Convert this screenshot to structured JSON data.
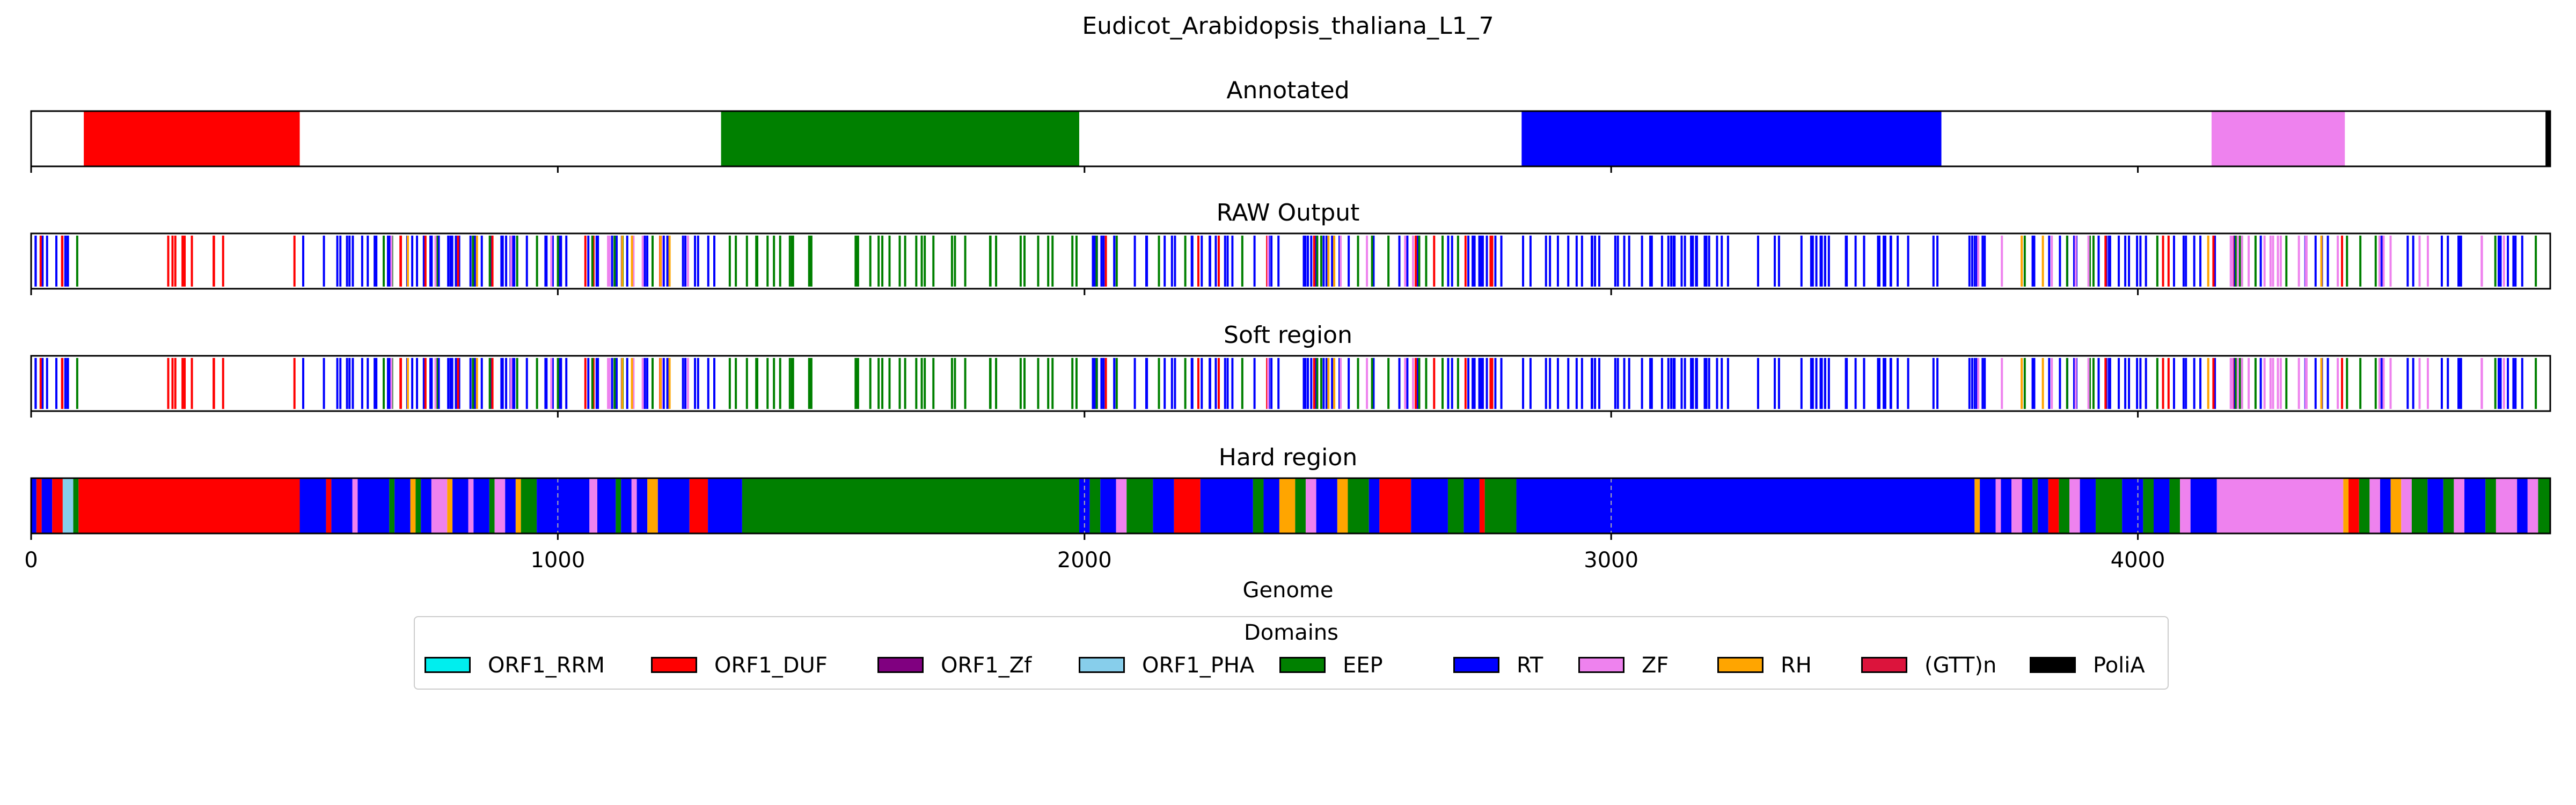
{
  "chart_data": {
    "type": "bar",
    "title": "Eudicot_Arabidopsis_thaliana_L1_7",
    "xlabel": "Genome",
    "xlim": [
      0,
      4783
    ],
    "xticks": [
      0,
      1000,
      2000,
      3000,
      4000
    ],
    "xtick_labels": [
      "0",
      "1000",
      "2000",
      "3000",
      "4000"
    ],
    "grid": "dashed vertical lines at ticks (hard region)",
    "colors": {
      "ORF1_RRM": "#00eeee",
      "ORF1_DUF": "#ff0000",
      "ORF1_Zf": "#800080",
      "ORF1_PHA": "#87ceeb",
      "EEP": "#008000",
      "RT": "#0000ff",
      "ZF": "#ee82ee",
      "RH": "#ffa500",
      "(GTT)n": "#dc143c",
      "PoliA": "#000000"
    },
    "panels": [
      {
        "title": "Annotated",
        "style": "block",
        "segments": [
          {
            "start": 100,
            "end": 510,
            "domain": "ORF1_DUF"
          },
          {
            "start": 1310,
            "end": 1990,
            "domain": "EEP"
          },
          {
            "start": 2830,
            "end": 3627,
            "domain": "RT"
          },
          {
            "start": 4140,
            "end": 4393,
            "domain": "ZF"
          },
          {
            "start": 4774,
            "end": 4783,
            "domain": "PoliA"
          }
        ]
      },
      {
        "title": "RAW Output",
        "style": "lines",
        "segments": [
          {
            "start": 5,
            "end": 75,
            "domain": "RT",
            "count": 8
          },
          {
            "start": 15,
            "end": 60,
            "domain": "ORF1_DUF",
            "count": 3
          },
          {
            "start": 85,
            "end": 90,
            "domain": "EEP",
            "count": 1
          },
          {
            "start": 160,
            "end": 400,
            "domain": "ORF1_DUF",
            "count": 9
          },
          {
            "start": 495,
            "end": 505,
            "domain": "ORF1_DUF",
            "count": 1
          },
          {
            "start": 515,
            "end": 1300,
            "domain": "RT",
            "count": 70
          },
          {
            "start": 550,
            "end": 1290,
            "domain": "ORF1_DUF",
            "count": 8
          },
          {
            "start": 620,
            "end": 1270,
            "domain": "EEP",
            "count": 12
          },
          {
            "start": 650,
            "end": 1250,
            "domain": "ZF",
            "count": 10
          },
          {
            "start": 700,
            "end": 1220,
            "domain": "RH",
            "count": 6
          },
          {
            "start": 1320,
            "end": 1990,
            "domain": "EEP",
            "count": 40
          },
          {
            "start": 2010,
            "end": 2800,
            "domain": "RT",
            "count": 55
          },
          {
            "start": 2020,
            "end": 2780,
            "domain": "EEP",
            "count": 14
          },
          {
            "start": 2040,
            "end": 2790,
            "domain": "ORF1_DUF",
            "count": 10
          },
          {
            "start": 2100,
            "end": 2700,
            "domain": "ZF",
            "count": 5
          },
          {
            "start": 2450,
            "end": 2500,
            "domain": "RH",
            "count": 2
          },
          {
            "start": 2820,
            "end": 3640,
            "domain": "RT",
            "count": 65
          },
          {
            "start": 3660,
            "end": 4760,
            "domain": "RT",
            "count": 55
          },
          {
            "start": 3660,
            "end": 4760,
            "domain": "EEP",
            "count": 16
          },
          {
            "start": 3690,
            "end": 3950,
            "domain": "ZF",
            "count": 6
          },
          {
            "start": 3690,
            "end": 4400,
            "domain": "RH",
            "count": 4
          },
          {
            "start": 3750,
            "end": 4500,
            "domain": "ORF1_DUF",
            "count": 6
          },
          {
            "start": 4150,
            "end": 4390,
            "domain": "ZF",
            "count": 14
          },
          {
            "start": 4430,
            "end": 4760,
            "domain": "ZF",
            "count": 8
          }
        ]
      },
      {
        "title": "Soft region",
        "style": "lines",
        "same_as": 1
      },
      {
        "title": "Hard region",
        "style": "block",
        "segments": [
          {
            "start": 0,
            "end": 10,
            "domain": "RT"
          },
          {
            "start": 10,
            "end": 20,
            "domain": "ORF1_DUF"
          },
          {
            "start": 20,
            "end": 40,
            "domain": "RT"
          },
          {
            "start": 40,
            "end": 60,
            "domain": "ORF1_DUF"
          },
          {
            "start": 60,
            "end": 80,
            "domain": "ORF1_PHA"
          },
          {
            "start": 80,
            "end": 90,
            "domain": "EEP"
          },
          {
            "start": 90,
            "end": 510,
            "domain": "ORF1_DUF"
          },
          {
            "start": 510,
            "end": 560,
            "domain": "RT"
          },
          {
            "start": 560,
            "end": 570,
            "domain": "ORF1_DUF"
          },
          {
            "start": 570,
            "end": 610,
            "domain": "RT"
          },
          {
            "start": 610,
            "end": 620,
            "domain": "ZF"
          },
          {
            "start": 620,
            "end": 680,
            "domain": "RT"
          },
          {
            "start": 680,
            "end": 690,
            "domain": "EEP"
          },
          {
            "start": 690,
            "end": 720,
            "domain": "RT"
          },
          {
            "start": 720,
            "end": 730,
            "domain": "RH"
          },
          {
            "start": 730,
            "end": 740,
            "domain": "EEP"
          },
          {
            "start": 740,
            "end": 760,
            "domain": "RT"
          },
          {
            "start": 760,
            "end": 790,
            "domain": "ZF"
          },
          {
            "start": 790,
            "end": 800,
            "domain": "RH"
          },
          {
            "start": 800,
            "end": 830,
            "domain": "RT"
          },
          {
            "start": 830,
            "end": 840,
            "domain": "ZF"
          },
          {
            "start": 840,
            "end": 870,
            "domain": "RT"
          },
          {
            "start": 870,
            "end": 880,
            "domain": "EEP"
          },
          {
            "start": 880,
            "end": 900,
            "domain": "ZF"
          },
          {
            "start": 900,
            "end": 920,
            "domain": "RT"
          },
          {
            "start": 920,
            "end": 930,
            "domain": "RH"
          },
          {
            "start": 930,
            "end": 960,
            "domain": "EEP"
          },
          {
            "start": 960,
            "end": 1060,
            "domain": "RT"
          },
          {
            "start": 1060,
            "end": 1075,
            "domain": "ZF"
          },
          {
            "start": 1075,
            "end": 1110,
            "domain": "RT"
          },
          {
            "start": 1110,
            "end": 1120,
            "domain": "EEP"
          },
          {
            "start": 1120,
            "end": 1140,
            "domain": "RT"
          },
          {
            "start": 1140,
            "end": 1150,
            "domain": "ZF"
          },
          {
            "start": 1150,
            "end": 1170,
            "domain": "RT"
          },
          {
            "start": 1170,
            "end": 1190,
            "domain": "RH"
          },
          {
            "start": 1190,
            "end": 1250,
            "domain": "RT"
          },
          {
            "start": 1250,
            "end": 1285,
            "domain": "ORF1_DUF"
          },
          {
            "start": 1285,
            "end": 1350,
            "domain": "RT"
          },
          {
            "start": 1350,
            "end": 1990,
            "domain": "EEP"
          },
          {
            "start": 1990,
            "end": 2010,
            "domain": "RT"
          },
          {
            "start": 2010,
            "end": 2030,
            "domain": "EEP"
          },
          {
            "start": 2030,
            "end": 2060,
            "domain": "RT"
          },
          {
            "start": 2060,
            "end": 2080,
            "domain": "ZF"
          },
          {
            "start": 2080,
            "end": 2130,
            "domain": "EEP"
          },
          {
            "start": 2130,
            "end": 2170,
            "domain": "RT"
          },
          {
            "start": 2170,
            "end": 2220,
            "domain": "ORF1_DUF"
          },
          {
            "start": 2220,
            "end": 2320,
            "domain": "RT"
          },
          {
            "start": 2320,
            "end": 2340,
            "domain": "EEP"
          },
          {
            "start": 2340,
            "end": 2370,
            "domain": "RT"
          },
          {
            "start": 2370,
            "end": 2400,
            "domain": "RH"
          },
          {
            "start": 2400,
            "end": 2420,
            "domain": "EEP"
          },
          {
            "start": 2420,
            "end": 2440,
            "domain": "ZF"
          },
          {
            "start": 2440,
            "end": 2480,
            "domain": "RT"
          },
          {
            "start": 2480,
            "end": 2500,
            "domain": "RH"
          },
          {
            "start": 2500,
            "end": 2540,
            "domain": "EEP"
          },
          {
            "start": 2540,
            "end": 2560,
            "domain": "RT"
          },
          {
            "start": 2560,
            "end": 2620,
            "domain": "ORF1_DUF"
          },
          {
            "start": 2620,
            "end": 2690,
            "domain": "RT"
          },
          {
            "start": 2690,
            "end": 2720,
            "domain": "EEP"
          },
          {
            "start": 2720,
            "end": 2750,
            "domain": "RT"
          },
          {
            "start": 2750,
            "end": 2760,
            "domain": "ORF1_DUF"
          },
          {
            "start": 2760,
            "end": 2820,
            "domain": "EEP"
          },
          {
            "start": 2820,
            "end": 3690,
            "domain": "RT"
          },
          {
            "start": 3690,
            "end": 3700,
            "domain": "RH"
          },
          {
            "start": 3700,
            "end": 3730,
            "domain": "RT"
          },
          {
            "start": 3730,
            "end": 3740,
            "domain": "ZF"
          },
          {
            "start": 3740,
            "end": 3760,
            "domain": "RT"
          },
          {
            "start": 3760,
            "end": 3780,
            "domain": "ZF"
          },
          {
            "start": 3780,
            "end": 3800,
            "domain": "RT"
          },
          {
            "start": 3800,
            "end": 3810,
            "domain": "EEP"
          },
          {
            "start": 3810,
            "end": 3830,
            "domain": "RT"
          },
          {
            "start": 3830,
            "end": 3850,
            "domain": "ORF1_DUF"
          },
          {
            "start": 3850,
            "end": 3870,
            "domain": "EEP"
          },
          {
            "start": 3870,
            "end": 3890,
            "domain": "ZF"
          },
          {
            "start": 3890,
            "end": 3920,
            "domain": "RT"
          },
          {
            "start": 3920,
            "end": 3970,
            "domain": "EEP"
          },
          {
            "start": 3970,
            "end": 4010,
            "domain": "RT"
          },
          {
            "start": 4010,
            "end": 4030,
            "domain": "EEP"
          },
          {
            "start": 4030,
            "end": 4060,
            "domain": "RT"
          },
          {
            "start": 4060,
            "end": 4080,
            "domain": "EEP"
          },
          {
            "start": 4080,
            "end": 4100,
            "domain": "ZF"
          },
          {
            "start": 4100,
            "end": 4150,
            "domain": "RT"
          },
          {
            "start": 4150,
            "end": 4390,
            "domain": "ZF"
          },
          {
            "start": 4390,
            "end": 4400,
            "domain": "RH"
          },
          {
            "start": 4400,
            "end": 4420,
            "domain": "ORF1_DUF"
          },
          {
            "start": 4420,
            "end": 4440,
            "domain": "EEP"
          },
          {
            "start": 4440,
            "end": 4460,
            "domain": "ZF"
          },
          {
            "start": 4460,
            "end": 4480,
            "domain": "RT"
          },
          {
            "start": 4480,
            "end": 4500,
            "domain": "RH"
          },
          {
            "start": 4500,
            "end": 4520,
            "domain": "ZF"
          },
          {
            "start": 4520,
            "end": 4550,
            "domain": "EEP"
          },
          {
            "start": 4550,
            "end": 4580,
            "domain": "RT"
          },
          {
            "start": 4580,
            "end": 4600,
            "domain": "EEP"
          },
          {
            "start": 4600,
            "end": 4620,
            "domain": "ZF"
          },
          {
            "start": 4620,
            "end": 4660,
            "domain": "RT"
          },
          {
            "start": 4660,
            "end": 4680,
            "domain": "EEP"
          },
          {
            "start": 4680,
            "end": 4720,
            "domain": "ZF"
          },
          {
            "start": 4720,
            "end": 4740,
            "domain": "RT"
          },
          {
            "start": 4740,
            "end": 4760,
            "domain": "ZF"
          },
          {
            "start": 4760,
            "end": 4783,
            "domain": "EEP"
          }
        ]
      }
    ],
    "legend": {
      "title": "Domains",
      "placement": "bottom-center",
      "entries": [
        "ORF1_RRM",
        "ORF1_DUF",
        "ORF1_Zf",
        "ORF1_PHA",
        "EEP",
        "RT",
        "ZF",
        "RH",
        "(GTT)n",
        "PoliA"
      ]
    }
  }
}
